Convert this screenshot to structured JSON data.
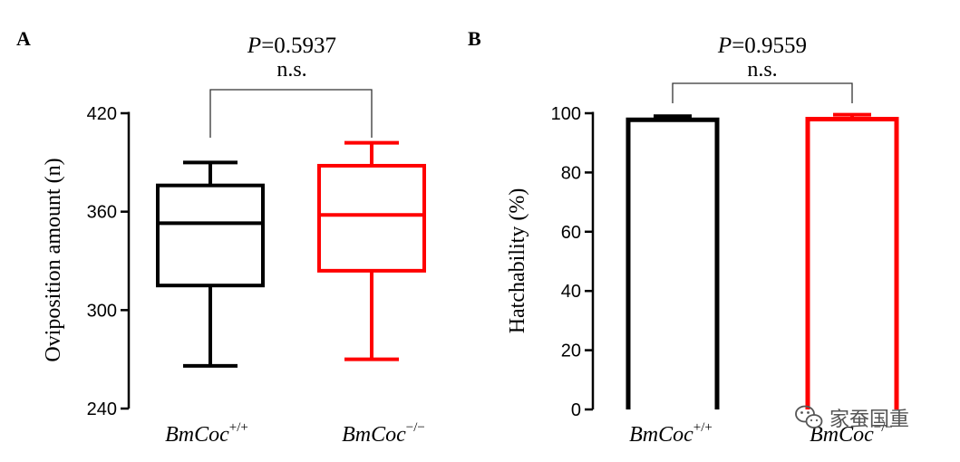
{
  "colors": {
    "wt": "#000000",
    "ko": "#ff0000",
    "axis": "#000000",
    "bracket": "#333333"
  },
  "chart_data": [
    {
      "panel": "A",
      "type": "box",
      "ylabel": "Oviposition amount (n)",
      "ylim": [
        240,
        420
      ],
      "yticks": [
        240,
        300,
        360,
        420
      ],
      "categories": [
        {
          "base": "BmCoc",
          "sup": "+/+",
          "color": "#000000"
        },
        {
          "base": "BmCoc",
          "sup": "−/−",
          "color": "#ff0000"
        }
      ],
      "boxes": [
        {
          "min": 266,
          "q1": 315,
          "median": 353,
          "q3": 376,
          "max": 390
        },
        {
          "min": 270,
          "q1": 324,
          "median": 358,
          "q3": 388,
          "max": 402
        }
      ],
      "significance": {
        "p_prefix": "P",
        "p_value": "=0.5937",
        "label": "n.s."
      }
    },
    {
      "panel": "B",
      "type": "bar",
      "ylabel": "Hatchability (%)",
      "ylim": [
        0,
        100
      ],
      "yticks": [
        0,
        20,
        40,
        60,
        80,
        100
      ],
      "categories": [
        {
          "base": "BmCoc",
          "sup": "+/+",
          "color": "#000000"
        },
        {
          "base": "BmCoc",
          "sup": "−/−",
          "color": "#ff0000"
        }
      ],
      "values": [
        97.8,
        98.0
      ],
      "errors": [
        1.2,
        1.5
      ],
      "significance": {
        "p_prefix": "P",
        "p_value": "=0.9559",
        "label": "n.s."
      }
    }
  ],
  "watermark": {
    "text": "家蚕国重",
    "icon": "wechat-icon"
  }
}
